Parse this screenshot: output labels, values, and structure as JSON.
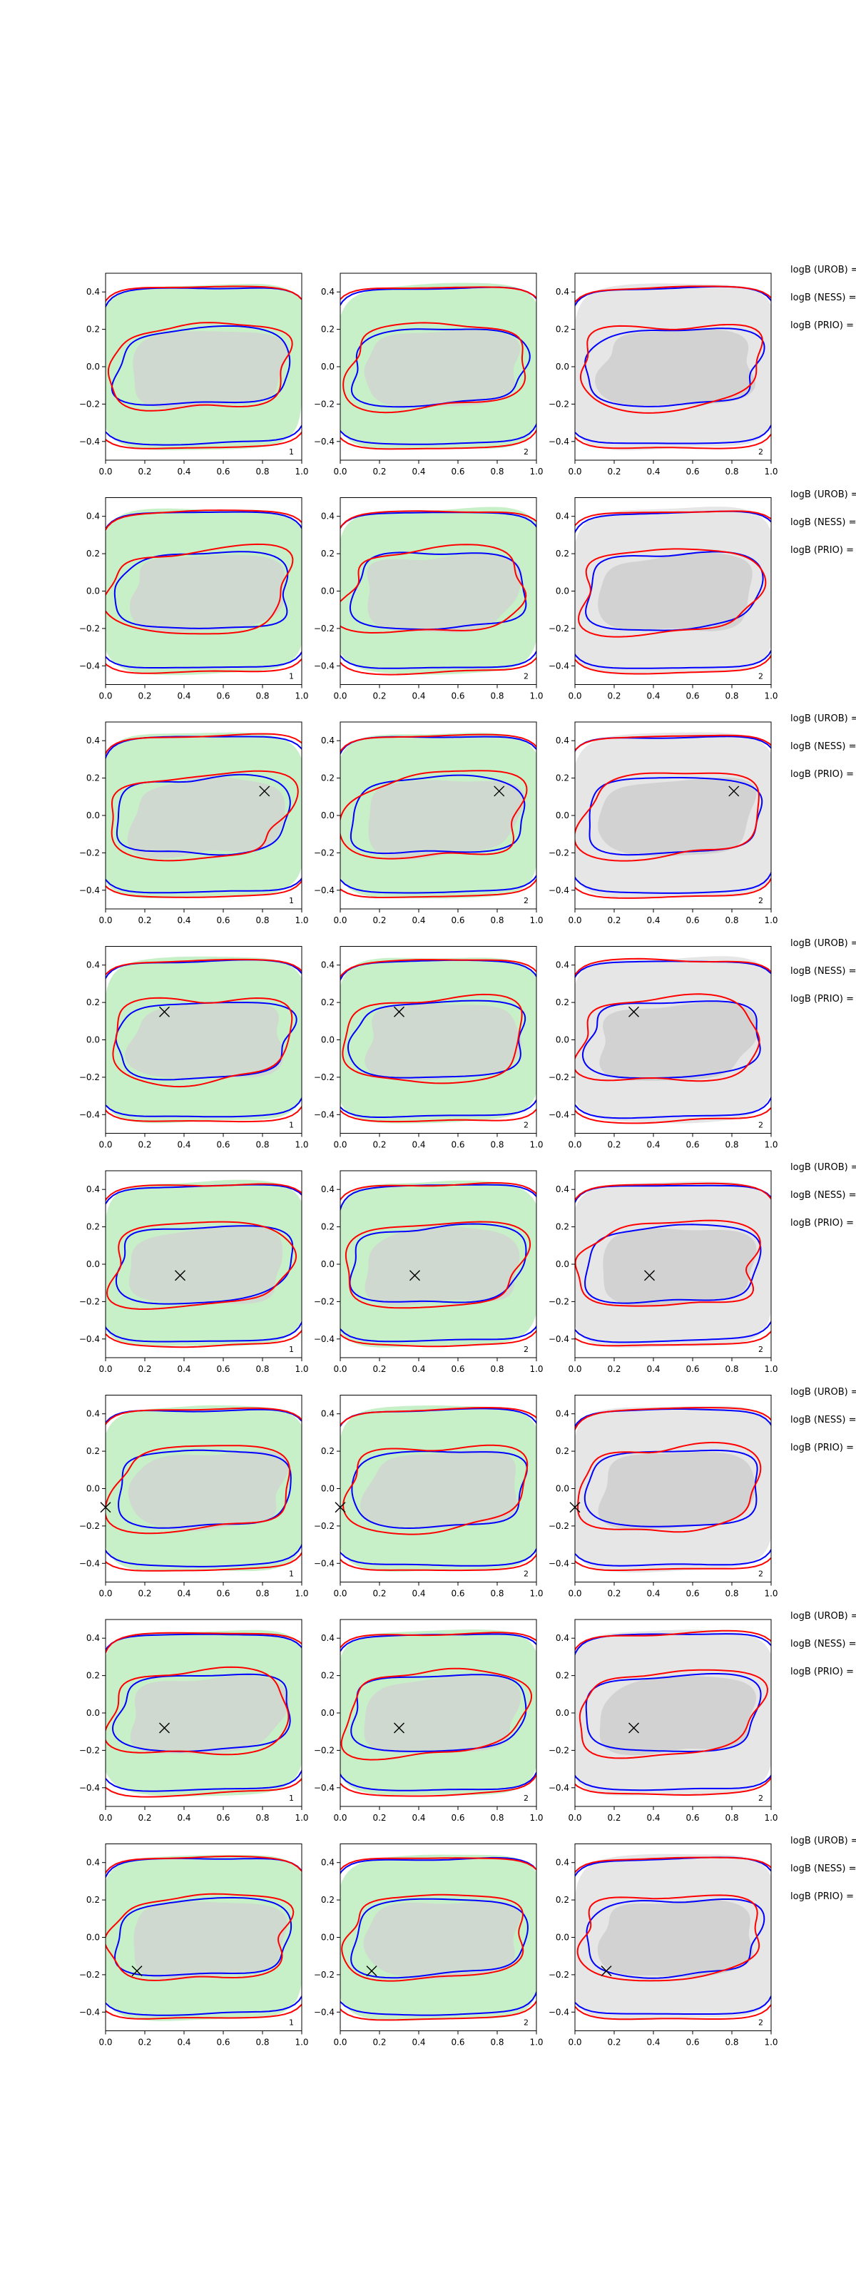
{
  "chart_data": {
    "type": "contour",
    "layout": {
      "rows": 8,
      "cols": 3
    },
    "xlim": [
      0.0,
      1.0
    ],
    "ylim": [
      -0.5,
      0.5
    ],
    "x_ticks": [
      "0.0",
      "0.2",
      "0.4",
      "0.6",
      "0.8",
      "1.0"
    ],
    "y_ticks": [
      "0.4",
      "0.2",
      "0.0",
      "−0.2",
      "−0.4"
    ],
    "x_tick_values": [
      0.0,
      0.2,
      0.4,
      0.6,
      0.8,
      1.0
    ],
    "y_tick_values": [
      0.4,
      0.2,
      0.0,
      -0.2,
      -0.4
    ],
    "colors": {
      "green_fill": "#c8f0c8",
      "gray_fill_outer": "#e6e6e6",
      "gray_fill_inner": "#d2d2d2",
      "contour_red": "#ff0000",
      "contour_blue": "#0000ff",
      "marker": "#000000",
      "axes": "#000000"
    },
    "series": [
      {
        "name": "red contours",
        "color": "#ff0000"
      },
      {
        "name": "blue contours",
        "color": "#0000ff"
      }
    ],
    "panels_bg": [
      "green",
      "green",
      "gray"
    ],
    "panel_ids": [
      "1",
      "2",
      "2"
    ],
    "rows": [
      {
        "marker": null,
        "side_labels": [
          "logB (UROB) =",
          "logB (NESS) =",
          "logB (PRIO) ="
        ]
      },
      {
        "marker": null,
        "side_labels": [
          "logB (UROB) =",
          "logB (NESS) =",
          "logB (PRIO) ="
        ]
      },
      {
        "marker": [
          0.81,
          0.13
        ],
        "side_labels": [
          "logB (UROB) =",
          "logB (NESS) =",
          "logB (PRIO) ="
        ]
      },
      {
        "marker": [
          0.3,
          0.15
        ],
        "side_labels": [
          "logB (UROB) =",
          "logB (NESS) =",
          "logB (PRIO) ="
        ]
      },
      {
        "marker": [
          0.38,
          -0.06
        ],
        "side_labels": [
          "logB (UROB) =",
          "logB (NESS) =",
          "logB (PRIO) ="
        ]
      },
      {
        "marker": [
          0.0,
          -0.1
        ],
        "side_labels": [
          "logB (UROB) =",
          "logB (NESS) =",
          "logB (PRIO) ="
        ]
      },
      {
        "marker": [
          0.3,
          -0.08
        ],
        "side_labels": [
          "logB (UROB) =",
          "logB (NESS) =",
          "logB (PRIO) ="
        ]
      },
      {
        "marker": [
          0.16,
          -0.18
        ],
        "side_labels": [
          "logB (UROB) =",
          "logB (NESS) =",
          "logB (PRIO) ="
        ]
      }
    ]
  }
}
